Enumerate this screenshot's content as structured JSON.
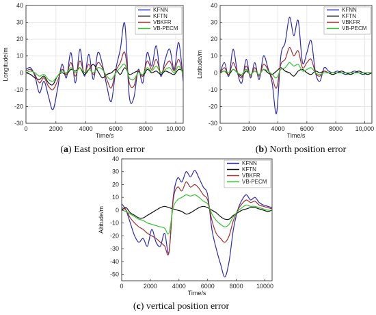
{
  "chart_data": [
    {
      "type": "line",
      "caption_prefix": "(",
      "caption_letter": "a",
      "caption_text": ") East position error",
      "xlabel": "Time/s",
      "ylabel": "Longitude/m",
      "xlim": [
        0,
        10500
      ],
      "ylim": [
        -30,
        40
      ],
      "x_ticks": [
        0,
        2000,
        4000,
        6000,
        8000,
        10000
      ],
      "x_tick_labels": [
        "0",
        "2000",
        "4000",
        "6000",
        "8000",
        "10,000"
      ],
      "y_ticks": [
        -30,
        -20,
        -10,
        0,
        10,
        20,
        30,
        40
      ],
      "grid": true,
      "legend_position": "top-right",
      "x": [
        0,
        300,
        600,
        900,
        1200,
        1500,
        1800,
        2100,
        2400,
        2700,
        3000,
        3300,
        3600,
        3900,
        4200,
        4500,
        4800,
        5100,
        5400,
        5700,
        6000,
        6300,
        6600,
        6900,
        7200,
        7500,
        7800,
        8100,
        8400,
        8700,
        9000,
        9300,
        9600,
        9900,
        10200,
        10500
      ],
      "series": [
        {
          "name": "KFNN",
          "color": "#2b2bb3",
          "values": [
            2,
            3,
            -2,
            -12,
            -5,
            -14,
            -22,
            -10,
            5,
            -3,
            12,
            -6,
            14,
            -2,
            11,
            -4,
            12,
            5,
            -8,
            -17,
            2,
            14,
            29,
            -14,
            -15,
            2,
            -6,
            12,
            4,
            16,
            -2,
            8,
            14,
            2,
            18,
            -5
          ]
        },
        {
          "name": "KFTN",
          "color": "#111111",
          "values": [
            0,
            -1,
            -3,
            -4,
            -2,
            -6,
            -7,
            -2,
            0,
            -1,
            2,
            1,
            3,
            -1,
            2,
            5,
            1,
            -3,
            -1,
            0,
            2,
            -1,
            3,
            -1,
            0,
            1,
            -2,
            2,
            0,
            1,
            -1,
            1,
            0,
            -1,
            2,
            1
          ]
        },
        {
          "name": "VBKFR",
          "color": "#a0302c",
          "values": [
            1,
            2,
            -1,
            -6,
            -3,
            -8,
            -10,
            -5,
            2,
            -1,
            6,
            -2,
            7,
            0,
            5,
            -1,
            6,
            3,
            -4,
            -9,
            1,
            6,
            12,
            -6,
            -8,
            1,
            -2,
            7,
            2,
            8,
            0,
            4,
            7,
            1,
            8,
            -2
          ]
        },
        {
          "name": "VB-PECM",
          "color": "#2fc52f",
          "values": [
            0,
            1,
            0,
            -2,
            -1,
            -4,
            -5,
            -2,
            1,
            0,
            3,
            0,
            3,
            0,
            2,
            0,
            3,
            2,
            -2,
            -4,
            0,
            3,
            5,
            -3,
            -4,
            0,
            -1,
            3,
            1,
            4,
            0,
            2,
            3,
            0,
            4,
            -1
          ]
        }
      ]
    },
    {
      "type": "line",
      "caption_prefix": "(",
      "caption_letter": "b",
      "caption_text": ") North position error",
      "xlabel": "Time/s",
      "ylabel": "Latitude/m",
      "xlim": [
        0,
        10500
      ],
      "ylim": [
        -30,
        40
      ],
      "x_ticks": [
        0,
        2000,
        4000,
        6000,
        8000,
        10000
      ],
      "x_tick_labels": [
        "0",
        "2000",
        "4000",
        "6000",
        "8000",
        "10,000"
      ],
      "y_ticks": [
        -30,
        -20,
        -10,
        0,
        10,
        20,
        30,
        40
      ],
      "grid": true,
      "legend_position": "top-right",
      "x": [
        0,
        300,
        600,
        900,
        1200,
        1500,
        1800,
        2100,
        2400,
        2700,
        3000,
        3300,
        3600,
        3900,
        4200,
        4500,
        4800,
        5100,
        5400,
        5700,
        6000,
        6300,
        6600,
        6900,
        7200,
        7500,
        7800,
        8100,
        8400,
        8700,
        9000,
        9300,
        9600,
        9900,
        10200,
        10500
      ],
      "series": [
        {
          "name": "KFNN",
          "color": "#2b2bb3",
          "values": [
            0,
            6,
            -2,
            14,
            0,
            -6,
            8,
            -3,
            6,
            -4,
            10,
            3,
            -6,
            -24,
            10,
            18,
            33,
            22,
            31,
            6,
            12,
            19,
            0,
            -5,
            3,
            1,
            0,
            1,
            0,
            -1,
            0,
            1,
            0,
            -1,
            0,
            0
          ]
        },
        {
          "name": "KFTN",
          "color": "#111111",
          "values": [
            0,
            1,
            -1,
            2,
            0,
            -2,
            1,
            -1,
            1,
            -1,
            2,
            0,
            -1,
            1,
            3,
            1,
            0,
            -2,
            1,
            2,
            0,
            -1,
            1,
            0,
            1,
            0,
            -1,
            0,
            1,
            0,
            -1,
            0,
            1,
            0,
            -1,
            0
          ]
        },
        {
          "name": "VBKFR",
          "color": "#a0302c",
          "values": [
            0,
            3,
            -1,
            6,
            0,
            -3,
            4,
            -2,
            3,
            -2,
            5,
            2,
            -3,
            -9,
            5,
            8,
            15,
            10,
            13,
            3,
            6,
            8,
            0,
            -2,
            1,
            0,
            0,
            0,
            0,
            0,
            0,
            0,
            0,
            0,
            0,
            0
          ]
        },
        {
          "name": "VB-PECM",
          "color": "#2fc52f",
          "values": [
            0,
            1,
            0,
            2,
            0,
            -1,
            2,
            -1,
            1,
            -1,
            2,
            1,
            -1,
            -3,
            2,
            3,
            6,
            4,
            5,
            1,
            2,
            3,
            0,
            -1,
            0,
            0,
            0,
            0,
            0,
            0,
            0,
            0,
            0,
            0,
            0,
            0
          ]
        }
      ]
    },
    {
      "type": "line",
      "caption_prefix": "(",
      "caption_letter": "c",
      "caption_text": ") vertical position error",
      "xlabel": "Time/s",
      "ylabel": "Altitude/m",
      "xlim": [
        0,
        10500
      ],
      "ylim": [
        -55,
        40
      ],
      "x_ticks": [
        0,
        2000,
        4000,
        6000,
        8000,
        10000
      ],
      "x_tick_labels": [
        "0",
        "2000",
        "4000",
        "6000",
        "8000",
        "10000"
      ],
      "y_ticks": [
        -50,
        -40,
        -30,
        -20,
        -10,
        0,
        10,
        20,
        30,
        40
      ],
      "grid": false,
      "legend_position": "top-right",
      "x": [
        0,
        300,
        600,
        900,
        1200,
        1500,
        1800,
        2100,
        2400,
        2700,
        3000,
        3300,
        3600,
        3900,
        4200,
        4500,
        4800,
        5100,
        5400,
        5700,
        6000,
        6300,
        6600,
        6900,
        7200,
        7500,
        7800,
        8100,
        8400,
        8700,
        9000,
        9300,
        9600,
        9900,
        10200,
        10500
      ],
      "series": [
        {
          "name": "KFNN",
          "color": "#2b2bb3",
          "values": [
            5,
            0,
            -10,
            -20,
            -25,
            -22,
            -28,
            -15,
            -25,
            -28,
            -18,
            -33,
            10,
            25,
            22,
            30,
            26,
            31,
            25,
            18,
            12,
            -15,
            -30,
            -42,
            -52,
            -40,
            -15,
            0,
            8,
            12,
            8,
            10,
            6,
            4,
            3,
            2
          ]
        },
        {
          "name": "KFTN",
          "color": "#111111",
          "values": [
            0,
            2,
            -2,
            -4,
            -6,
            -6,
            -4,
            -2,
            0,
            2,
            3,
            2,
            1,
            0,
            -1,
            -3,
            -2,
            0,
            2,
            3,
            2,
            0,
            -2,
            -5,
            -7,
            -7,
            -4,
            -2,
            0,
            1,
            2,
            2,
            1,
            0,
            -1,
            0
          ]
        },
        {
          "name": "VBKFR",
          "color": "#a0302c",
          "values": [
            2,
            0,
            -6,
            -10,
            -13,
            -15,
            -18,
            -20,
            -22,
            -25,
            -28,
            -33,
            8,
            18,
            15,
            22,
            18,
            20,
            17,
            12,
            8,
            -8,
            -18,
            -22,
            -25,
            -20,
            -8,
            0,
            5,
            8,
            6,
            7,
            4,
            3,
            2,
            1
          ]
        },
        {
          "name": "VB-PECM",
          "color": "#2fc52f",
          "values": [
            0,
            -1,
            -3,
            -5,
            -7,
            -8,
            -10,
            -11,
            -12,
            -13,
            -14,
            -18,
            2,
            8,
            10,
            12,
            11,
            12,
            10,
            7,
            5,
            -3,
            -8,
            -11,
            -13,
            -11,
            -5,
            -1,
            2,
            4,
            3,
            3,
            2,
            1,
            0,
            0
          ]
        }
      ]
    }
  ]
}
